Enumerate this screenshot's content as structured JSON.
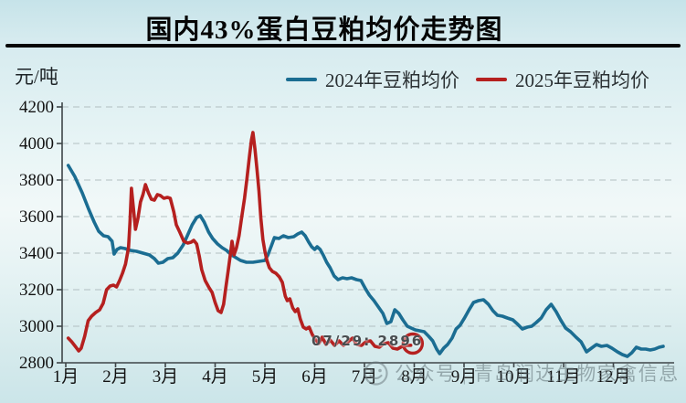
{
  "title": "国内43%蛋白豆粕均价走势图",
  "y_axis_unit": "元/吨",
  "legend": [
    {
      "label": "2024年豆粕均价",
      "color": "#1b6d92"
    },
    {
      "label": "2025年豆粕均价",
      "color": "#b5201f"
    }
  ],
  "watermark": {
    "icon": "wechat-face-icon",
    "text": "公众号 | 青岛润达生物家禽信息"
  },
  "chart_data": {
    "type": "line",
    "title": "国内43%蛋白豆粕均价走势图",
    "xlabel": "",
    "ylabel": "元/吨",
    "ylim": [
      2800,
      4200
    ],
    "grid": true,
    "legend_position": "top",
    "y_ticks": [
      2800,
      3000,
      3200,
      3400,
      3600,
      3800,
      4000,
      4200
    ],
    "x_tick_labels": [
      "1月",
      "2月",
      "3月",
      "4月",
      "5月",
      "6月",
      "7月",
      "8月",
      "9月",
      "10月",
      "11月",
      "12月"
    ],
    "annotation": {
      "text": "07/29: 2896",
      "month": 6.0,
      "value": 2885
    },
    "series": [
      {
        "name": "2024年豆粕均价",
        "color": "#1b6d92",
        "points": [
          [
            1.05,
            3880
          ],
          [
            1.18,
            3820
          ],
          [
            1.33,
            3730
          ],
          [
            1.46,
            3640
          ],
          [
            1.57,
            3570
          ],
          [
            1.66,
            3520
          ],
          [
            1.76,
            3495
          ],
          [
            1.85,
            3490
          ],
          [
            1.93,
            3465
          ],
          [
            1.97,
            3395
          ],
          [
            2.03,
            3420
          ],
          [
            2.1,
            3430
          ],
          [
            2.19,
            3425
          ],
          [
            2.3,
            3415
          ],
          [
            2.42,
            3410
          ],
          [
            2.55,
            3400
          ],
          [
            2.68,
            3390
          ],
          [
            2.78,
            3370
          ],
          [
            2.86,
            3345
          ],
          [
            2.95,
            3350
          ],
          [
            3.05,
            3370
          ],
          [
            3.15,
            3375
          ],
          [
            3.25,
            3400
          ],
          [
            3.36,
            3445
          ],
          [
            3.45,
            3500
          ],
          [
            3.54,
            3555
          ],
          [
            3.63,
            3595
          ],
          [
            3.7,
            3605
          ],
          [
            3.78,
            3570
          ],
          [
            3.87,
            3515
          ],
          [
            3.95,
            3480
          ],
          [
            4.05,
            3450
          ],
          [
            4.14,
            3430
          ],
          [
            4.23,
            3415
          ],
          [
            4.33,
            3390
          ],
          [
            4.42,
            3375
          ],
          [
            4.51,
            3360
          ],
          [
            4.63,
            3350
          ],
          [
            4.76,
            3350
          ],
          [
            4.88,
            3355
          ],
          [
            5.0,
            3360
          ],
          [
            5.06,
            3390
          ],
          [
            5.13,
            3440
          ],
          [
            5.19,
            3485
          ],
          [
            5.28,
            3480
          ],
          [
            5.37,
            3495
          ],
          [
            5.47,
            3485
          ],
          [
            5.58,
            3490
          ],
          [
            5.66,
            3505
          ],
          [
            5.74,
            3515
          ],
          [
            5.81,
            3495
          ],
          [
            5.88,
            3460
          ],
          [
            5.94,
            3435
          ],
          [
            6.0,
            3420
          ],
          [
            6.05,
            3435
          ],
          [
            6.11,
            3420
          ],
          [
            6.17,
            3390
          ],
          [
            6.24,
            3350
          ],
          [
            6.31,
            3320
          ],
          [
            6.39,
            3275
          ],
          [
            6.47,
            3255
          ],
          [
            6.56,
            3265
          ],
          [
            6.65,
            3260
          ],
          [
            6.74,
            3265
          ],
          [
            6.84,
            3255
          ],
          [
            6.93,
            3250
          ],
          [
            7.02,
            3205
          ],
          [
            7.1,
            3170
          ],
          [
            7.19,
            3140
          ],
          [
            7.28,
            3105
          ],
          [
            7.37,
            3070
          ],
          [
            7.45,
            3015
          ],
          [
            7.53,
            3025
          ],
          [
            7.61,
            3090
          ],
          [
            7.69,
            3070
          ],
          [
            7.77,
            3035
          ],
          [
            7.86,
            3000
          ],
          [
            7.94,
            2990
          ],
          [
            8.02,
            2980
          ],
          [
            8.11,
            2975
          ],
          [
            8.2,
            2970
          ],
          [
            8.29,
            2945
          ],
          [
            8.37,
            2920
          ],
          [
            8.45,
            2875
          ],
          [
            8.51,
            2850
          ],
          [
            8.59,
            2880
          ],
          [
            8.67,
            2900
          ],
          [
            8.76,
            2935
          ],
          [
            8.84,
            2985
          ],
          [
            8.92,
            3005
          ],
          [
            9.01,
            3045
          ],
          [
            9.1,
            3090
          ],
          [
            9.19,
            3130
          ],
          [
            9.29,
            3140
          ],
          [
            9.39,
            3145
          ],
          [
            9.49,
            3120
          ],
          [
            9.58,
            3085
          ],
          [
            9.67,
            3060
          ],
          [
            9.77,
            3055
          ],
          [
            9.87,
            3045
          ],
          [
            9.98,
            3035
          ],
          [
            10.08,
            3010
          ],
          [
            10.17,
            2985
          ],
          [
            10.27,
            2995
          ],
          [
            10.36,
            3000
          ],
          [
            10.45,
            3020
          ],
          [
            10.55,
            3045
          ],
          [
            10.65,
            3090
          ],
          [
            10.75,
            3120
          ],
          [
            10.85,
            3080
          ],
          [
            10.94,
            3035
          ],
          [
            11.04,
            2990
          ],
          [
            11.14,
            2970
          ],
          [
            11.25,
            2940
          ],
          [
            11.35,
            2915
          ],
          [
            11.46,
            2860
          ],
          [
            11.56,
            2880
          ],
          [
            11.66,
            2900
          ],
          [
            11.76,
            2890
          ],
          [
            11.87,
            2895
          ],
          [
            11.97,
            2880
          ],
          [
            12.08,
            2860
          ],
          [
            12.18,
            2845
          ],
          [
            12.28,
            2835
          ],
          [
            12.37,
            2855
          ],
          [
            12.46,
            2885
          ],
          [
            12.56,
            2875
          ],
          [
            12.65,
            2875
          ],
          [
            12.74,
            2870
          ],
          [
            12.83,
            2875
          ],
          [
            12.92,
            2885
          ],
          [
            13.0,
            2890
          ]
        ]
      },
      {
        "name": "2025年豆粕均价",
        "color": "#b5201f",
        "end_marker": {
          "month": 7.97,
          "value": 2905
        },
        "points": [
          [
            1.05,
            2935
          ],
          [
            1.12,
            2915
          ],
          [
            1.19,
            2890
          ],
          [
            1.26,
            2865
          ],
          [
            1.31,
            2880
          ],
          [
            1.38,
            2945
          ],
          [
            1.45,
            3030
          ],
          [
            1.52,
            3055
          ],
          [
            1.6,
            3075
          ],
          [
            1.68,
            3090
          ],
          [
            1.75,
            3125
          ],
          [
            1.82,
            3200
          ],
          [
            1.89,
            3220
          ],
          [
            1.96,
            3225
          ],
          [
            2.02,
            3215
          ],
          [
            2.08,
            3250
          ],
          [
            2.14,
            3290
          ],
          [
            2.2,
            3340
          ],
          [
            2.26,
            3430
          ],
          [
            2.29,
            3570
          ],
          [
            2.32,
            3755
          ],
          [
            2.36,
            3645
          ],
          [
            2.4,
            3530
          ],
          [
            2.45,
            3590
          ],
          [
            2.5,
            3680
          ],
          [
            2.55,
            3720
          ],
          [
            2.6,
            3775
          ],
          [
            2.66,
            3730
          ],
          [
            2.72,
            3695
          ],
          [
            2.78,
            3690
          ],
          [
            2.84,
            3720
          ],
          [
            2.9,
            3715
          ],
          [
            2.97,
            3700
          ],
          [
            3.04,
            3705
          ],
          [
            3.1,
            3700
          ],
          [
            3.17,
            3625
          ],
          [
            3.22,
            3555
          ],
          [
            3.29,
            3515
          ],
          [
            3.37,
            3465
          ],
          [
            3.45,
            3455
          ],
          [
            3.52,
            3460
          ],
          [
            3.57,
            3470
          ],
          [
            3.63,
            3450
          ],
          [
            3.68,
            3385
          ],
          [
            3.73,
            3310
          ],
          [
            3.8,
            3250
          ],
          [
            3.88,
            3210
          ],
          [
            3.94,
            3185
          ],
          [
            4.0,
            3130
          ],
          [
            4.06,
            3085
          ],
          [
            4.12,
            3075
          ],
          [
            4.17,
            3120
          ],
          [
            4.21,
            3200
          ],
          [
            4.26,
            3300
          ],
          [
            4.31,
            3400
          ],
          [
            4.34,
            3465
          ],
          [
            4.38,
            3390
          ],
          [
            4.43,
            3430
          ],
          [
            4.48,
            3495
          ],
          [
            4.53,
            3590
          ],
          [
            4.59,
            3700
          ],
          [
            4.64,
            3810
          ],
          [
            4.69,
            3930
          ],
          [
            4.73,
            4020
          ],
          [
            4.76,
            4060
          ],
          [
            4.8,
            3970
          ],
          [
            4.84,
            3860
          ],
          [
            4.88,
            3740
          ],
          [
            4.92,
            3590
          ],
          [
            4.96,
            3475
          ],
          [
            5.0,
            3410
          ],
          [
            5.04,
            3360
          ],
          [
            5.09,
            3320
          ],
          [
            5.15,
            3300
          ],
          [
            5.22,
            3290
          ],
          [
            5.29,
            3270
          ],
          [
            5.35,
            3240
          ],
          [
            5.41,
            3165
          ],
          [
            5.45,
            3140
          ],
          [
            5.5,
            3150
          ],
          [
            5.56,
            3100
          ],
          [
            5.61,
            3080
          ],
          [
            5.66,
            3095
          ],
          [
            5.71,
            3040
          ],
          [
            5.77,
            2995
          ],
          [
            5.83,
            2985
          ],
          [
            5.89,
            2995
          ],
          [
            5.95,
            2955
          ],
          [
            6.01,
            2930
          ],
          [
            6.08,
            2905
          ],
          [
            6.15,
            2940
          ],
          [
            6.23,
            2900
          ],
          [
            6.31,
            2925
          ],
          [
            6.4,
            2895
          ],
          [
            6.49,
            2920
          ],
          [
            6.58,
            2895
          ],
          [
            6.67,
            2915
          ],
          [
            6.76,
            2935
          ],
          [
            6.85,
            2900
          ],
          [
            6.94,
            2895
          ],
          [
            7.03,
            2915
          ],
          [
            7.12,
            2920
          ],
          [
            7.21,
            2890
          ],
          [
            7.3,
            2885
          ],
          [
            7.39,
            2905
          ],
          [
            7.48,
            2910
          ],
          [
            7.57,
            2880
          ],
          [
            7.66,
            2875
          ],
          [
            7.76,
            2890
          ],
          [
            7.85,
            2895
          ],
          [
            7.93,
            2896
          ]
        ]
      }
    ]
  }
}
